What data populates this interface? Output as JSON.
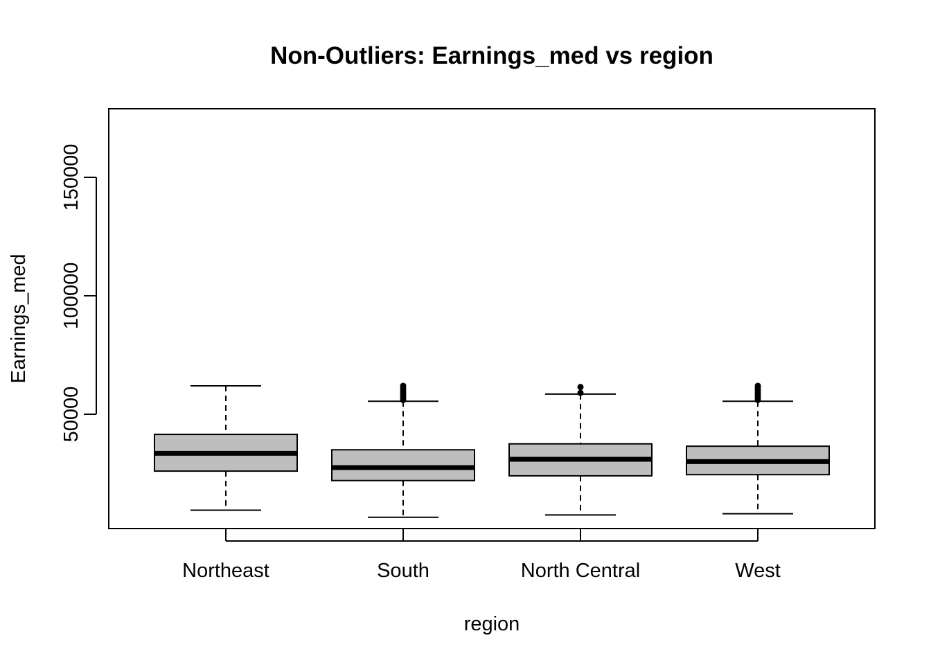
{
  "chart_data": {
    "type": "boxplot",
    "title": "Non-Outliers: Earnings_med vs region",
    "xlabel": "region",
    "ylabel": "Earnings_med",
    "ylim": [
      0,
      177000
    ],
    "yticks": [
      50000,
      100000,
      150000
    ],
    "categories": [
      "Northeast",
      "South",
      "North Central",
      "West"
    ],
    "box_color": "#bebebe",
    "boxes": [
      {
        "name": "Northeast",
        "whisker_low": 9500,
        "q1": 26000,
        "median": 33500,
        "q3": 41500,
        "whisker_high": 62000,
        "outliers": []
      },
      {
        "name": "South",
        "whisker_low": 6500,
        "q1": 22000,
        "median": 27500,
        "q3": 35000,
        "whisker_high": 55500,
        "outliers": [
          56000,
          57000,
          58000,
          59000,
          60000,
          61000,
          62000
        ]
      },
      {
        "name": "North Central",
        "whisker_low": 7500,
        "q1": 24000,
        "median": 31000,
        "q3": 37500,
        "whisker_high": 58500,
        "outliers": [
          59000,
          61500
        ]
      },
      {
        "name": "West",
        "whisker_low": 8000,
        "q1": 24500,
        "median": 30000,
        "q3": 36500,
        "whisker_high": 55500,
        "outliers": [
          56000,
          57000,
          58000,
          59000,
          60000,
          61000,
          62000
        ]
      }
    ]
  }
}
